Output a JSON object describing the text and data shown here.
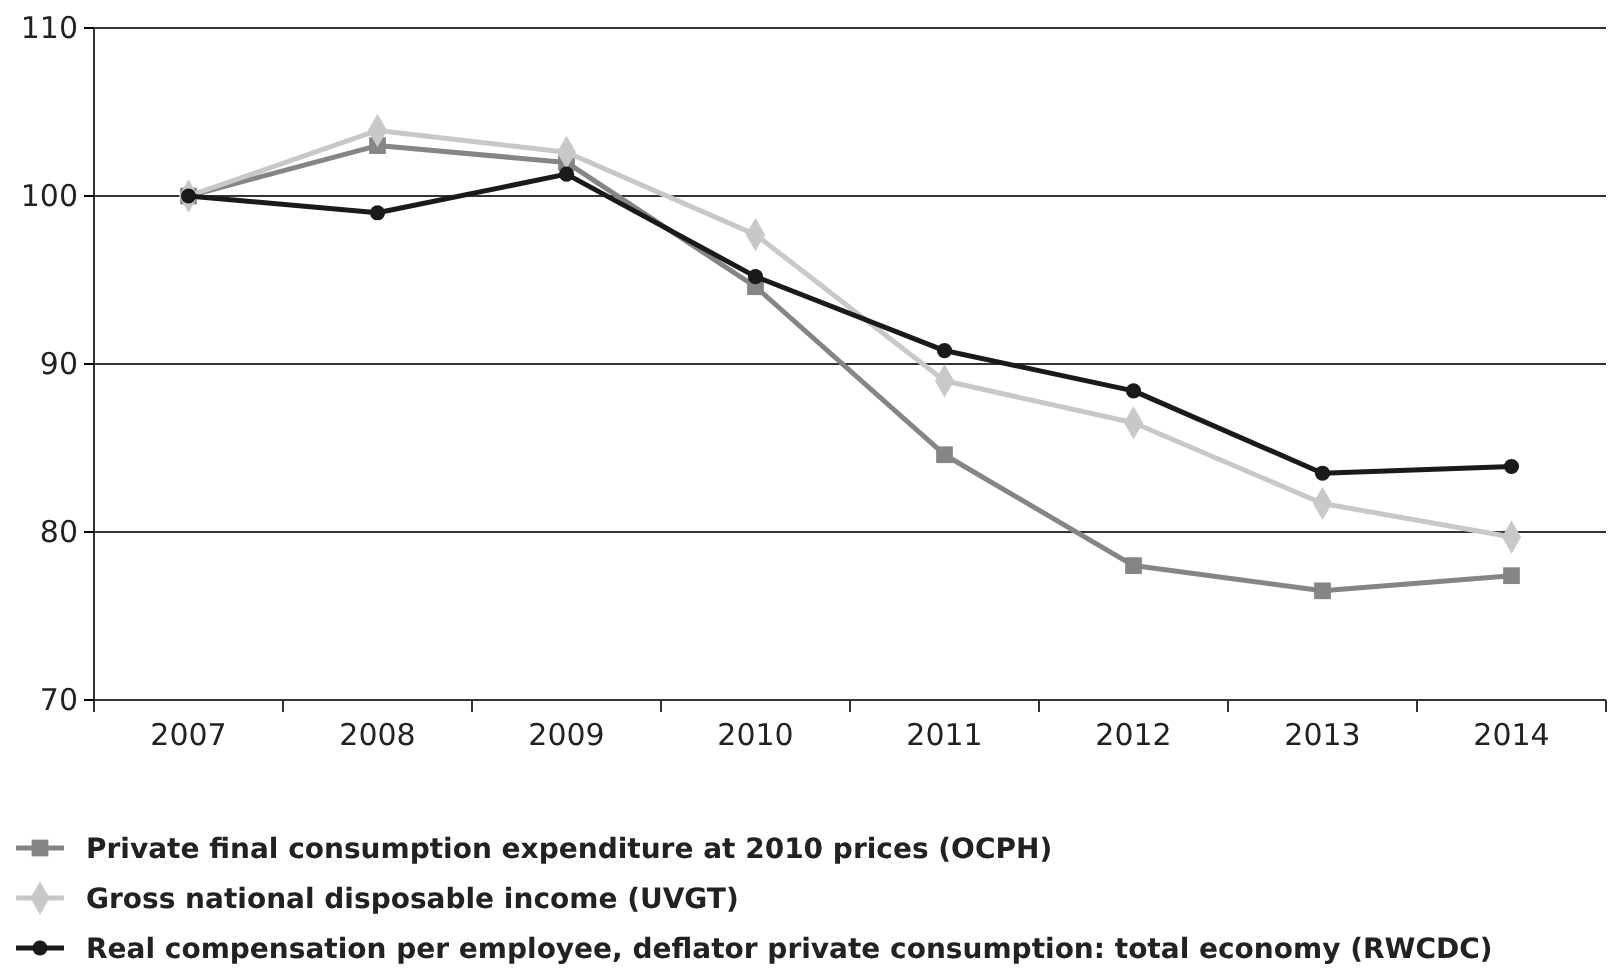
{
  "chart_data": {
    "type": "line",
    "categories": [
      "2007",
      "2008",
      "2009",
      "2010",
      "2011",
      "2012",
      "2013",
      "2014"
    ],
    "series": [
      {
        "name": "Private final consumption expenditure at 2010 prices (OCPH)",
        "color": "#858585",
        "marker": "square",
        "values": [
          100,
          103.0,
          102.0,
          94.6,
          84.6,
          78.0,
          76.5,
          77.4
        ]
      },
      {
        "name": "Gross national disposable income (UVGT)",
        "color": "#c8c8c8",
        "marker": "diamond",
        "values": [
          100,
          103.9,
          102.6,
          97.7,
          89.0,
          86.5,
          81.7,
          79.7
        ]
      },
      {
        "name": "Real compensation per employee, deflator private consumption: total economy (RWCDC)",
        "color": "#1a1a1a",
        "marker": "circle",
        "values": [
          100,
          99.0,
          101.3,
          95.2,
          90.8,
          88.4,
          83.5,
          83.9
        ]
      }
    ],
    "ylim": [
      70,
      110
    ],
    "yticks": [
      70,
      80,
      90,
      100,
      110
    ],
    "grid": "y",
    "legend": "bottom"
  }
}
